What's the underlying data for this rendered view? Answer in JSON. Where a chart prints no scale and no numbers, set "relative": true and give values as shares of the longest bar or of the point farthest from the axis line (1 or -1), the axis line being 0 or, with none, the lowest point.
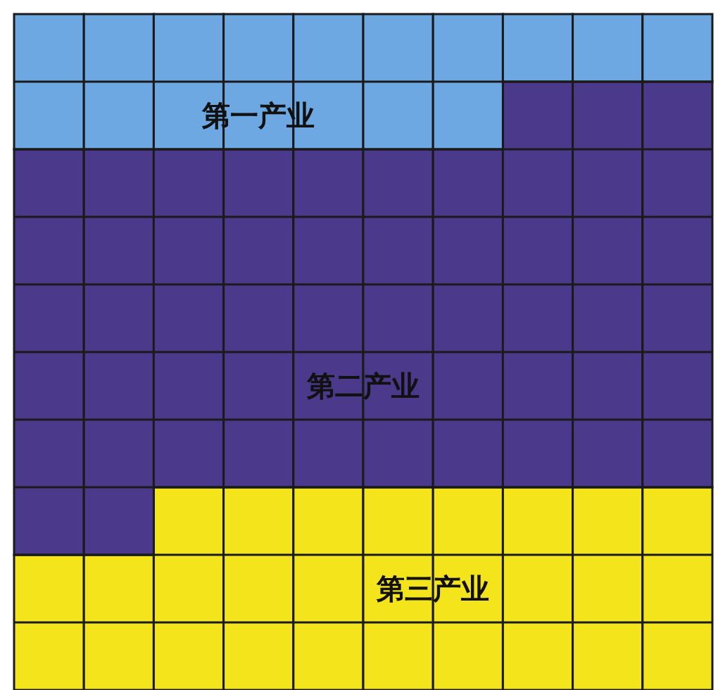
{
  "chart_data": {
    "type": "bar",
    "stacked": true,
    "relative": true,
    "categories": [
      null,
      null,
      null,
      null,
      null,
      null,
      null,
      null,
      null,
      null
    ],
    "series": [
      {
        "name": "第三产业",
        "color": "#f4e41c",
        "values": [
          0.2,
          0.2,
          0.3,
          0.3,
          0.3,
          0.3,
          0.3,
          0.3,
          0.3,
          0.3
        ]
      },
      {
        "name": "第二产业",
        "color": "#4b3a8c",
        "values": [
          0.6,
          0.6,
          0.5,
          0.5,
          0.5,
          0.5,
          0.5,
          0.6,
          0.6,
          0.6
        ]
      },
      {
        "name": "第一产业",
        "color": "#6ea8e2",
        "values": [
          0.2,
          0.2,
          0.2,
          0.2,
          0.2,
          0.2,
          0.2,
          0.1,
          0.1,
          0.1
        ]
      }
    ]
  }
}
